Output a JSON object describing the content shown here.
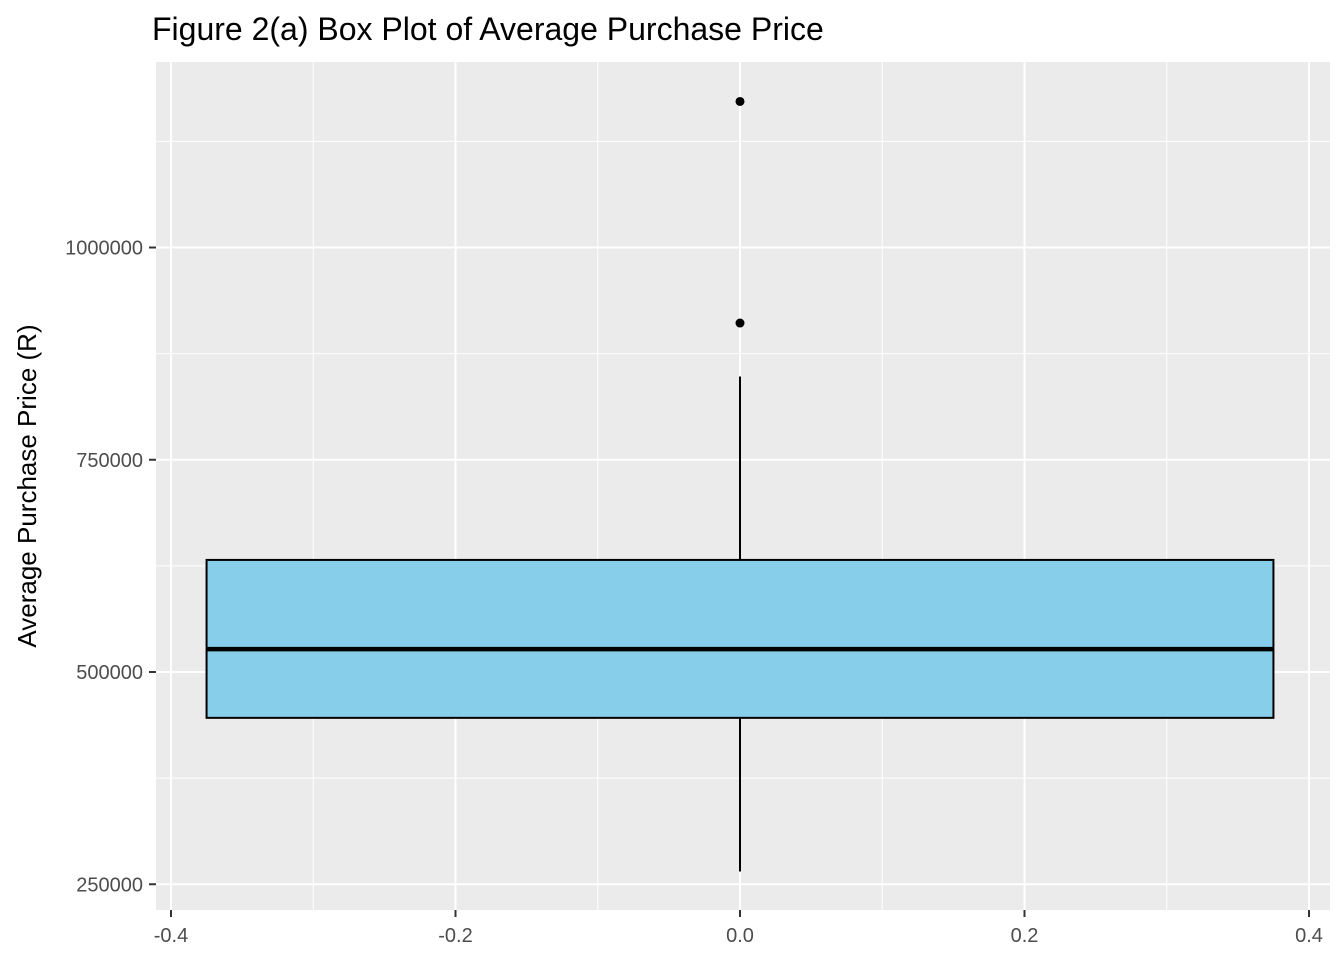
{
  "chart_data": {
    "type": "box",
    "title": "Figure 2(a) Box Plot of Average Purchase Price",
    "xlabel": "",
    "ylabel": "Average Purchase Price (R)",
    "xlim": [
      -0.4,
      0.4
    ],
    "ylim": [
      250000,
      1150000
    ],
    "x_ticks": [
      -0.4,
      -0.2,
      0.0,
      0.2,
      0.4
    ],
    "x_tick_labels": [
      "-0.4",
      "-0.2",
      "0.0",
      "0.2",
      "0.4"
    ],
    "y_ticks": [
      250000,
      500000,
      750000,
      1000000
    ],
    "y_tick_labels": [
      "250000",
      "500000",
      "750000",
      "1000000"
    ],
    "grid": true,
    "box": {
      "x_center": 0.0,
      "x_left": -0.375,
      "x_right": 0.375,
      "whisker_low": 265000,
      "q1": 446000,
      "median": 527000,
      "q3": 632000,
      "whisker_high": 848000,
      "outliers": [
        911000,
        1172000
      ]
    },
    "colors": {
      "panel_background": "#ebebeb",
      "grid": "#ffffff",
      "box_fill": "#87ceeb",
      "box_stroke": "#000000",
      "outlier": "#000000"
    }
  }
}
